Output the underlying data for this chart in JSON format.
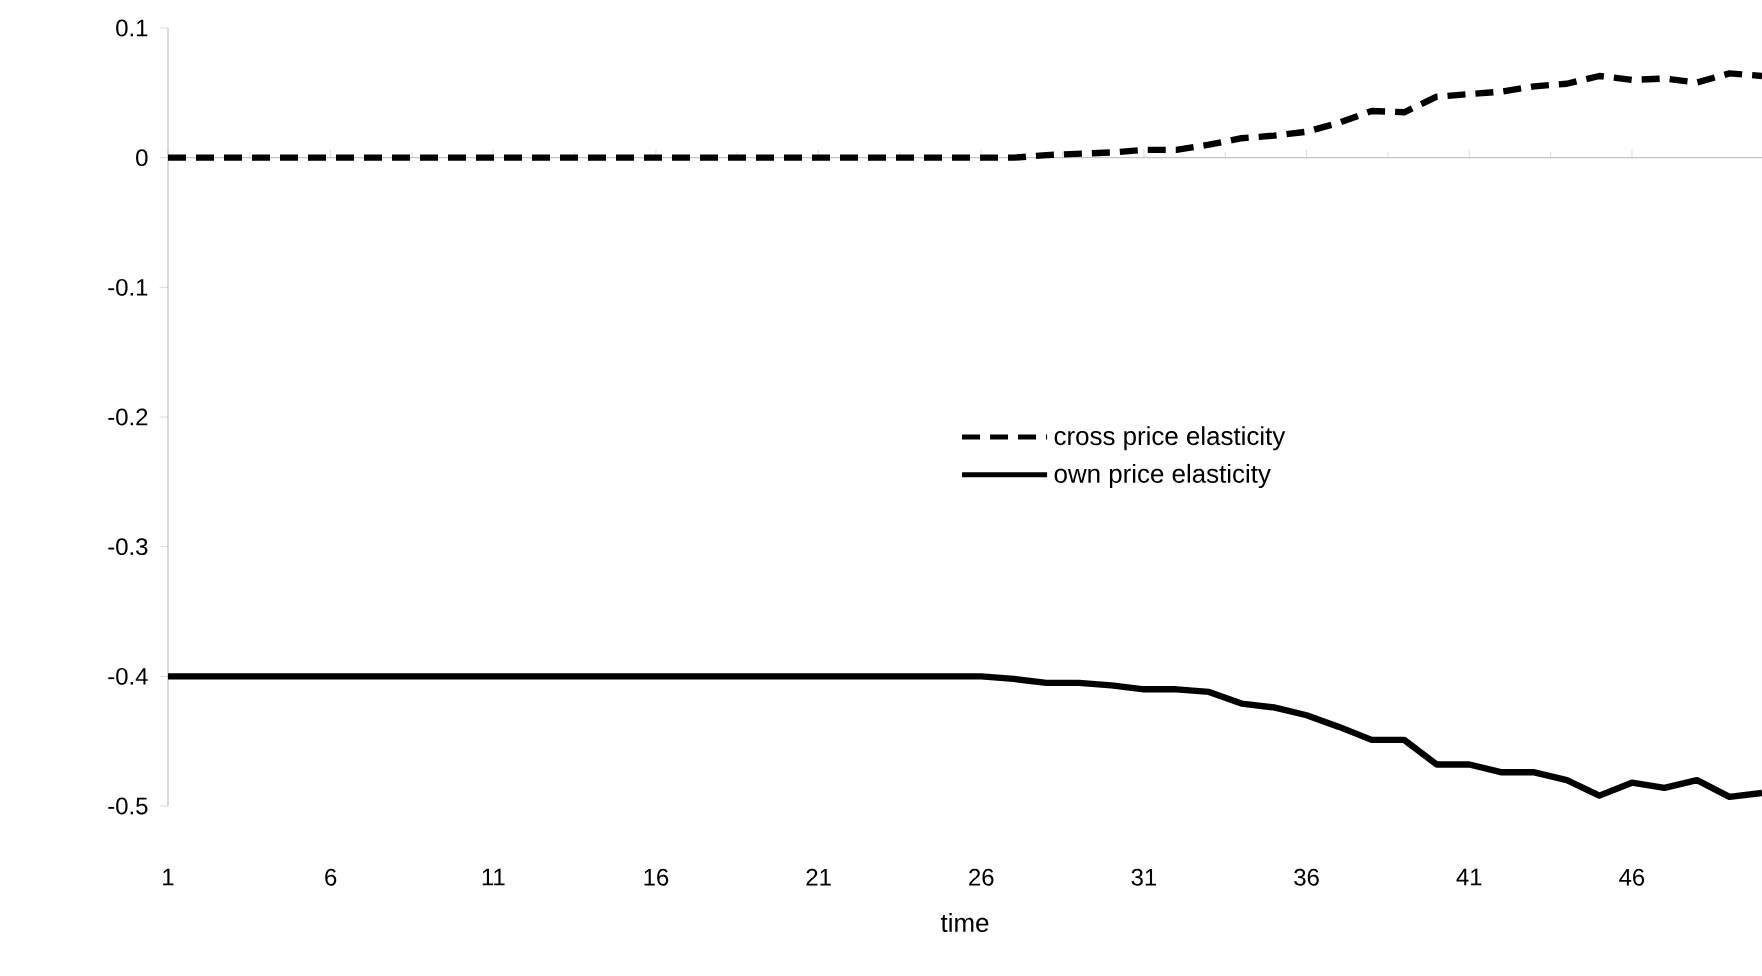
{
  "chart_data": {
    "type": "line",
    "xlabel": "time",
    "categories": [
      "1",
      null,
      null,
      null,
      null,
      "6",
      null,
      null,
      null,
      null,
      "11",
      null,
      null,
      null,
      null,
      "16",
      null,
      null,
      null,
      null,
      "21",
      null,
      null,
      null,
      null,
      "26",
      null,
      null,
      null,
      null,
      "31",
      null,
      null,
      null,
      null,
      "36",
      null,
      null,
      null,
      null,
      "41",
      null,
      null,
      null,
      null,
      "46",
      null,
      null,
      null,
      null
    ],
    "series": [
      {
        "name": "cross price elasticity",
        "color": "#000000",
        "line_style": "dashed",
        "values": [
          0,
          0,
          0,
          0,
          0,
          0,
          0,
          0,
          0,
          0,
          0,
          0,
          0,
          0,
          0,
          0,
          0,
          0,
          0,
          0,
          0,
          0,
          0,
          0,
          0,
          0,
          0,
          0.002,
          0.003,
          0.004,
          0.006,
          0.006,
          0.01,
          0.015,
          0.017,
          0.02,
          0.027,
          0.036,
          0.035,
          0.047,
          0.049,
          0.051,
          0.055,
          0.057,
          0.063,
          0.06,
          0.061,
          0.058,
          0.065,
          0.063
        ]
      },
      {
        "name": "own price elasticity",
        "color": "#000000",
        "line_style": "solid",
        "values": [
          -0.4,
          -0.4,
          -0.4,
          -0.4,
          -0.4,
          -0.4,
          -0.4,
          -0.4,
          -0.4,
          -0.4,
          -0.4,
          -0.4,
          -0.4,
          -0.4,
          -0.4,
          -0.4,
          -0.4,
          -0.4,
          -0.4,
          -0.4,
          -0.4,
          -0.4,
          -0.4,
          -0.4,
          -0.4,
          -0.4,
          -0.402,
          -0.405,
          -0.405,
          -0.407,
          -0.41,
          -0.41,
          -0.412,
          -0.421,
          -0.424,
          -0.43,
          -0.439,
          -0.449,
          -0.449,
          -0.468,
          -0.468,
          -0.474,
          -0.474,
          -0.48,
          -0.492,
          -0.482,
          -0.486,
          -0.48,
          -0.493,
          -0.49
        ]
      }
    ],
    "ylim": [
      -0.5,
      0.1
    ],
    "yticks": [
      0.1,
      0,
      -0.1,
      -0.2,
      -0.3,
      -0.4,
      -0.5
    ],
    "legend": "right"
  }
}
